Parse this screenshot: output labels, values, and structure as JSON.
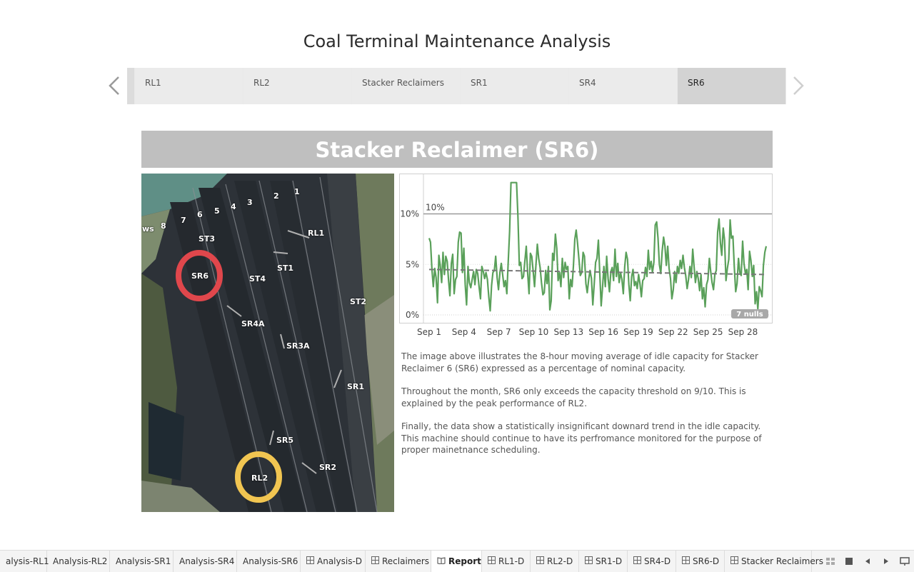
{
  "page": {
    "title": "Coal Terminal Maintenance Analysis"
  },
  "story": {
    "prev_icon": "chevron-left-icon",
    "next_icon": "chevron-right-icon",
    "points": [
      "RL1",
      "RL2",
      "Stacker Reclaimers",
      "SR1",
      "SR4",
      "SR6"
    ],
    "active": "SR6"
  },
  "dashboard": {
    "heading": "Stacker Reclaimer (SR6)",
    "map": {
      "labels": [
        "1",
        "2",
        "3",
        "4",
        "5",
        "6",
        "7",
        "8",
        "ws",
        "ST3",
        "RL1",
        "SR6",
        "ST1",
        "ST4",
        "ST2",
        "SR4A",
        "SR3A",
        "SR1",
        "SR5",
        "SR2",
        "RL2"
      ],
      "circles": [
        {
          "target": "SR6",
          "color": "#e0474c"
        },
        {
          "target": "RL2",
          "color": "#f1c551"
        }
      ]
    },
    "description": [
      "The image above illustrates the 8-hour moving average of idle capacity for Stacker Reclaimer 6 (SR6) expressed as a percentage of nominal capacity.",
      "Throughout the month, SR6 only exceeds the capacity threshold on 9/10. This is explained by the peak performance of  RL2.",
      "Finally, the data show a statistically insignificant downard trend in the idle capacity. This machine should continue to have its perfromance monitored for the purpose of proper mainetnance scheduling."
    ]
  },
  "chart_data": {
    "type": "line",
    "x_range": [
      "Sep 1",
      "Sep 30"
    ],
    "x_ticks": [
      "Sep 1",
      "Sep 4",
      "Sep 7",
      "Sep 10",
      "Sep 13",
      "Sep 16",
      "Sep 19",
      "Sep 22",
      "Sep 25",
      "Sep 28"
    ],
    "y_ticks": [
      "0%",
      "5%",
      "10%"
    ],
    "ylim": [
      0,
      13.5
    ],
    "reference_line": {
      "value": 10,
      "label": "10%"
    },
    "trend_line": {
      "start": 4.5,
      "end": 4.0
    },
    "nulls_badge": "7 nulls",
    "line_color": "#5aa05a",
    "series": [
      {
        "values": [
          7.6,
          7.2,
          4.5,
          2.8,
          4.6,
          3.7,
          1.2,
          5.9,
          4.9,
          3.2,
          6.2,
          4.0,
          5.8,
          5.3,
          3.4,
          1.9,
          5.1,
          6.0,
          2.1,
          3.5,
          3.8,
          7.2,
          8.2,
          8.1,
          4.2,
          6.6,
          3.0,
          1.0,
          4.8,
          3.2,
          2.7,
          3.5,
          4.3,
          3.0,
          4.5,
          4.1,
          2.8,
          1.6,
          4.8,
          4.3,
          3.6,
          4.2,
          3.5,
          1.8,
          0.4,
          2.9,
          4.2,
          4.4,
          5.8,
          3.7,
          2.5,
          4.2,
          5.1,
          4.0,
          2.8,
          3.4,
          2.1,
          5.2,
          8.3,
          13.1,
          13.1,
          13.1,
          13.1,
          13.1,
          9.8,
          4.9,
          5.2,
          3.6,
          3.8,
          5.3,
          6.8,
          4.2,
          2.1,
          6.1,
          5.8,
          4.3,
          2.8,
          5.0,
          7.0,
          5.6,
          4.7,
          3.2,
          2.0,
          2.2,
          4.4,
          3.1,
          4.8,
          0.5,
          1.4,
          6.1,
          5.4,
          8.0,
          6.6,
          3.4,
          4.2,
          2.8,
          5.6,
          3.7,
          5.2,
          4.5,
          4.8,
          1.6,
          3.5,
          2.8,
          4.8,
          7.5,
          8.4,
          7.1,
          5.5,
          3.9,
          4.2,
          6.2,
          5.8,
          3.1,
          2.2,
          3.5,
          4.4,
          3.6,
          1.0,
          3.0,
          5.2,
          5.6,
          7.4,
          4.2,
          0.9,
          2.7,
          4.8,
          2.8,
          5.8,
          3.6,
          2.3,
          4.3,
          4.7,
          3.4,
          6.5,
          3.8,
          5.1,
          3.2,
          4.2,
          3.5,
          2.1,
          4.8,
          6.2,
          5.5,
          3.0,
          1.4,
          3.8,
          4.5,
          2.9,
          3.3,
          2.6,
          4.0,
          3.1,
          1.8,
          3.4,
          3.6,
          4.7,
          3.8,
          6.4,
          4.5,
          5.3,
          4.2,
          5.2,
          8.9,
          9.2,
          7.6,
          5.0,
          4.1,
          6.3,
          7.7,
          6.8,
          4.9,
          6.8,
          4.6,
          3.6,
          1.6,
          2.5,
          4.3,
          3.2,
          4.8,
          4.1,
          5.4,
          4.6,
          5.9,
          4.7,
          3.9,
          2.6,
          3.5,
          4.8,
          3.7,
          6.5,
          4.8,
          3.2,
          4.3,
          3.6,
          2.4,
          4.0,
          1.6,
          2.7,
          0.8,
          3.0,
          3.5,
          5.6,
          4.3,
          3.2,
          2.5,
          4.0,
          4.4,
          8.2,
          9.5,
          7.1,
          5.9,
          8.6,
          7.4,
          3.4,
          4.6,
          5.5,
          9.4,
          7.6,
          7.8,
          4.8,
          2.3,
          3.1,
          5.6,
          4.2,
          3.9,
          7.3,
          5.1,
          4.1,
          4.5,
          2.5,
          6.3,
          5.4,
          3.8,
          4.9,
          1.1,
          2.3,
          0.6,
          2.8,
          2.4,
          1.8,
          4.9,
          6.2,
          6.8
        ]
      }
    ]
  },
  "sheets": [
    {
      "label": "alysis-RL1",
      "icon": ""
    },
    {
      "label": "Analysis-RL2",
      "icon": ""
    },
    {
      "label": "Analysis-SR1",
      "icon": ""
    },
    {
      "label": "Analysis-SR4",
      "icon": ""
    },
    {
      "label": "Analysis-SR6",
      "icon": ""
    },
    {
      "label": "Analysis-D",
      "icon": "grid-icon"
    },
    {
      "label": "Reclaimers",
      "icon": "grid-icon"
    },
    {
      "label": "Report",
      "icon": "book-icon"
    },
    {
      "label": "RL1-D",
      "icon": "grid-icon"
    },
    {
      "label": "RL2-D",
      "icon": "grid-icon"
    },
    {
      "label": "SR1-D",
      "icon": "grid-icon"
    },
    {
      "label": "SR4-D",
      "icon": "grid-icon"
    },
    {
      "label": "SR6-D",
      "icon": "grid-icon"
    },
    {
      "label": "Stacker Reclaimers",
      "icon": "grid-icon"
    }
  ],
  "active_sheet": "Report",
  "controls": [
    "filmstrip-icon",
    "sheet-sorter-icon",
    "previous-sheet-icon",
    "next-sheet-icon",
    "presentation-icon"
  ]
}
